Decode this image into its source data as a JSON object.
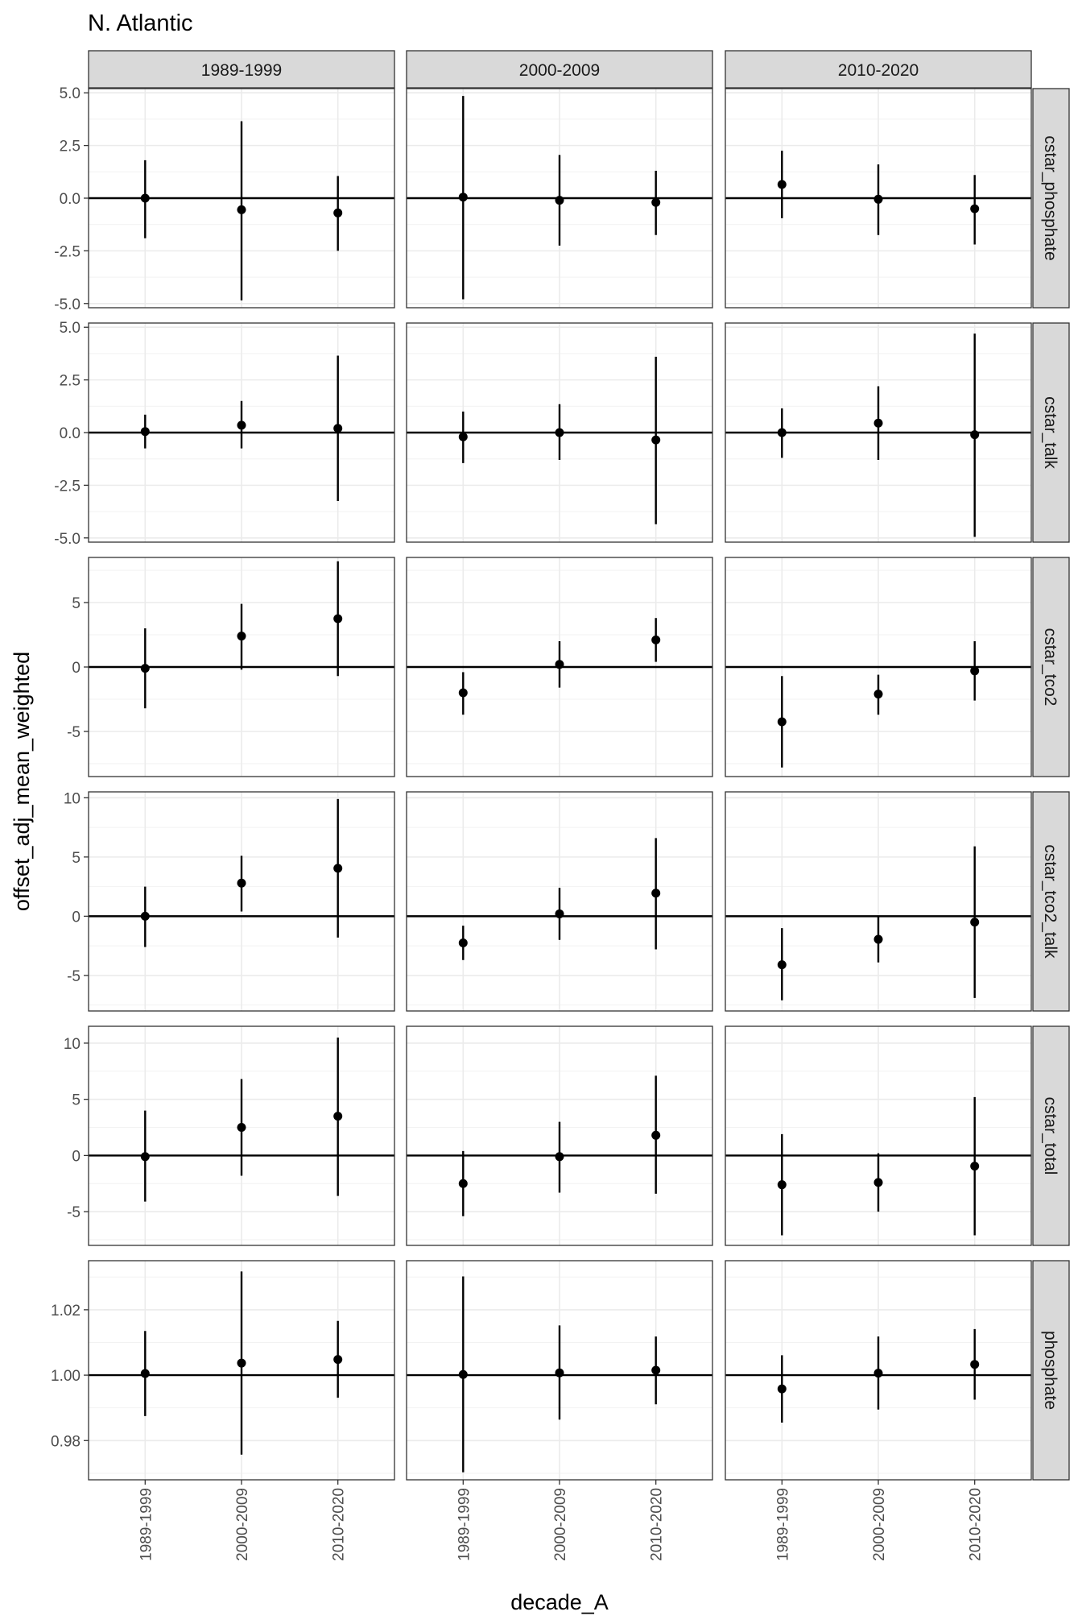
{
  "chart_data": {
    "type": "scatter",
    "title": "N. Atlantic",
    "xlabel": "decade_A",
    "ylabel": "offset_adj_mean_weighted",
    "facet_columns": [
      "1989-1999",
      "2000-2009",
      "2010-2020"
    ],
    "x_categories": [
      "1989-1999",
      "2000-2009",
      "2010-2020"
    ],
    "grid": true,
    "reference_line": 0,
    "rows": [
      {
        "label": "cstar_phosphate",
        "ylim": [
          -5.2,
          5.2
        ],
        "yticks": [
          -5,
          -2.5,
          0,
          2.5,
          5
        ],
        "ytick_labels": [
          "-5.0",
          "-2.5",
          "0.0",
          "2.5",
          "5.0"
        ],
        "reference": 0,
        "panels": [
          [
            {
              "y": 0.0,
              "ymin": -1.9,
              "ymax": 1.8
            },
            {
              "y": -0.55,
              "ymin": -4.85,
              "ymax": 3.65
            },
            {
              "y": -0.7,
              "ymin": -2.5,
              "ymax": 1.05
            }
          ],
          [
            {
              "y": 0.05,
              "ymin": -4.8,
              "ymax": 4.85
            },
            {
              "y": -0.1,
              "ymin": -2.25,
              "ymax": 2.05
            },
            {
              "y": -0.2,
              "ymin": -1.75,
              "ymax": 1.3
            }
          ],
          [
            {
              "y": 0.65,
              "ymin": -0.95,
              "ymax": 2.25
            },
            {
              "y": -0.05,
              "ymin": -1.75,
              "ymax": 1.6
            },
            {
              "y": -0.5,
              "ymin": -2.2,
              "ymax": 1.1
            }
          ]
        ]
      },
      {
        "label": "cstar_talk",
        "ylim": [
          -5.2,
          5.2
        ],
        "yticks": [
          -5,
          -2.5,
          0,
          2.5,
          5
        ],
        "ytick_labels": [
          "-5.0",
          "-2.5",
          "0.0",
          "2.5",
          "5.0"
        ],
        "reference": 0,
        "panels": [
          [
            {
              "y": 0.05,
              "ymin": -0.75,
              "ymax": 0.85
            },
            {
              "y": 0.35,
              "ymin": -0.75,
              "ymax": 1.5
            },
            {
              "y": 0.2,
              "ymin": -3.25,
              "ymax": 3.65
            }
          ],
          [
            {
              "y": -0.2,
              "ymin": -1.45,
              "ymax": 1.0
            },
            {
              "y": 0.0,
              "ymin": -1.3,
              "ymax": 1.35
            },
            {
              "y": -0.35,
              "ymin": -4.35,
              "ymax": 3.6
            }
          ],
          [
            {
              "y": 0.0,
              "ymin": -1.2,
              "ymax": 1.15
            },
            {
              "y": 0.45,
              "ymin": -1.3,
              "ymax": 2.2
            },
            {
              "y": -0.1,
              "ymin": -4.95,
              "ymax": 4.7
            }
          ]
        ]
      },
      {
        "label": "cstar_tco2",
        "ylim": [
          -8.5,
          8.5
        ],
        "yticks": [
          -5,
          0,
          5
        ],
        "ytick_labels": [
          "-5",
          "0",
          "5"
        ],
        "reference": 0,
        "panels": [
          [
            {
              "y": -0.1,
              "ymin": -3.2,
              "ymax": 3.0
            },
            {
              "y": 2.4,
              "ymin": -0.2,
              "ymax": 4.9
            },
            {
              "y": 3.75,
              "ymin": -0.7,
              "ymax": 8.2
            }
          ],
          [
            {
              "y": -2.0,
              "ymin": -3.7,
              "ymax": -0.4
            },
            {
              "y": 0.2,
              "ymin": -1.6,
              "ymax": 2.0
            },
            {
              "y": 2.1,
              "ymin": 0.4,
              "ymax": 3.8
            }
          ],
          [
            {
              "y": -4.25,
              "ymin": -7.8,
              "ymax": -0.7
            },
            {
              "y": -2.1,
              "ymin": -3.7,
              "ymax": -0.6
            },
            {
              "y": -0.3,
              "ymin": -2.6,
              "ymax": 2.0
            }
          ]
        ]
      },
      {
        "label": "cstar_tco2_talk",
        "ylim": [
          -8.0,
          10.5
        ],
        "yticks": [
          -5,
          0,
          5,
          10
        ],
        "ytick_labels": [
          "-5",
          "0",
          "5",
          "10"
        ],
        "reference": 0,
        "panels": [
          [
            {
              "y": 0.0,
              "ymin": -2.6,
              "ymax": 2.5
            },
            {
              "y": 2.8,
              "ymin": 0.4,
              "ymax": 5.1
            },
            {
              "y": 4.05,
              "ymin": -1.8,
              "ymax": 9.9
            }
          ],
          [
            {
              "y": -2.25,
              "ymin": -3.7,
              "ymax": -0.8
            },
            {
              "y": 0.2,
              "ymin": -2.0,
              "ymax": 2.4
            },
            {
              "y": 1.95,
              "ymin": -2.8,
              "ymax": 6.6
            }
          ],
          [
            {
              "y": -4.1,
              "ymin": -7.1,
              "ymax": -1.0
            },
            {
              "y": -1.95,
              "ymin": -3.9,
              "ymax": 0.0
            },
            {
              "y": -0.5,
              "ymin": -6.9,
              "ymax": 5.9
            }
          ]
        ]
      },
      {
        "label": "cstar_total",
        "ylim": [
          -8.0,
          11.5
        ],
        "yticks": [
          -5,
          0,
          5,
          10
        ],
        "ytick_labels": [
          "-5",
          "0",
          "5",
          "10"
        ],
        "reference": 0,
        "panels": [
          [
            {
              "y": -0.1,
              "ymin": -4.1,
              "ymax": 4.0
            },
            {
              "y": 2.5,
              "ymin": -1.8,
              "ymax": 6.8
            },
            {
              "y": 3.5,
              "ymin": -3.6,
              "ymax": 10.5
            }
          ],
          [
            {
              "y": -2.5,
              "ymin": -5.4,
              "ymax": 0.4
            },
            {
              "y": -0.1,
              "ymin": -3.3,
              "ymax": 3.0
            },
            {
              "y": 1.8,
              "ymin": -3.4,
              "ymax": 7.1
            }
          ],
          [
            {
              "y": -2.6,
              "ymin": -7.1,
              "ymax": 1.9
            },
            {
              "y": -2.4,
              "ymin": -5.0,
              "ymax": 0.2
            },
            {
              "y": -0.95,
              "ymin": -7.1,
              "ymax": 5.2
            }
          ]
        ]
      },
      {
        "label": "phosphate",
        "ylim": [
          0.968,
          1.035
        ],
        "yticks": [
          0.98,
          1.0,
          1.02
        ],
        "ytick_labels": [
          "0.98",
          "1.00",
          "1.02"
        ],
        "reference": 1.0,
        "panels": [
          [
            {
              "y": 1.0005,
              "ymin": 0.9875,
              "ymax": 1.0135
            },
            {
              "y": 1.0037,
              "ymin": 0.9757,
              "ymax": 1.0317
            },
            {
              "y": 1.0048,
              "ymin": 0.9931,
              "ymax": 1.0166
            }
          ],
          [
            {
              "y": 1.0002,
              "ymin": 0.9703,
              "ymax": 1.0302
            },
            {
              "y": 1.0007,
              "ymin": 0.9864,
              "ymax": 1.0152
            },
            {
              "y": 1.0015,
              "ymin": 0.9911,
              "ymax": 1.0118
            }
          ],
          [
            {
              "y": 0.9958,
              "ymin": 0.9855,
              "ymax": 1.0061
            },
            {
              "y": 1.0006,
              "ymin": 0.9895,
              "ymax": 1.0118
            },
            {
              "y": 1.0033,
              "ymin": 0.9925,
              "ymax": 1.0141
            }
          ]
        ]
      }
    ]
  }
}
